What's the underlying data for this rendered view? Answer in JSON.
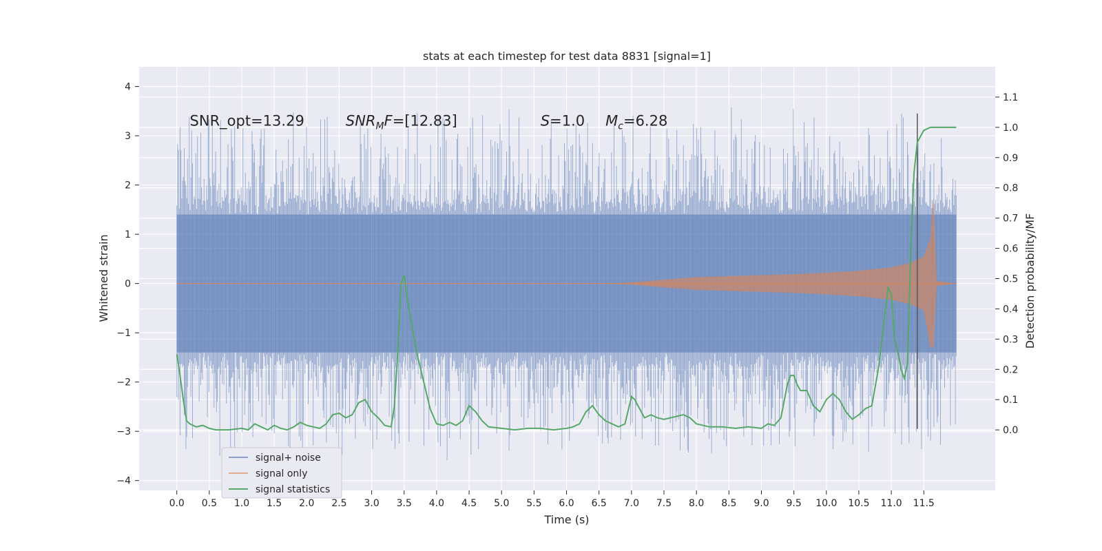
{
  "chart_data": {
    "type": "line",
    "title": "stats at each timestep for test data 8831 [signal=1]",
    "xlabel": "Time (s)",
    "ylabel": "Whitened strain",
    "ylabel_right": "Detection probability/MF",
    "xlim": [
      -0.58,
      12.6
    ],
    "ylim": [
      -4.2,
      4.4
    ],
    "ylim_right": [
      -0.2,
      1.2
    ],
    "xticks": [
      0.0,
      0.5,
      1.0,
      1.5,
      2.0,
      2.5,
      3.0,
      3.5,
      4.0,
      4.5,
      5.0,
      5.5,
      6.0,
      6.5,
      7.0,
      7.5,
      8.0,
      8.5,
      9.0,
      9.5,
      10.0,
      10.5,
      11.0,
      11.5
    ],
    "xtick_labels": [
      "0.0",
      "0.5",
      "1.0",
      "1.5",
      "2.0",
      "2.5",
      "3.0",
      "3.5",
      "4.0",
      "4.5",
      "5.0",
      "5.5",
      "6.0",
      "6.5",
      "7.0",
      "7.5",
      "8.0",
      "8.5",
      "9.0",
      "9.5",
      "10.0",
      "10.5",
      "11.0",
      "11.5"
    ],
    "yticks": [
      -4,
      -3,
      -2,
      -1,
      0,
      1,
      2,
      3,
      4
    ],
    "ytick_labels": [
      "−4",
      "−3",
      "−2",
      "−1",
      "0",
      "1",
      "2",
      "3",
      "4"
    ],
    "yticks_right": [
      0.0,
      0.1,
      0.2,
      0.3,
      0.4,
      0.5,
      0.6,
      0.7,
      0.8,
      0.9,
      1.0,
      1.1
    ],
    "ytick_labels_right": [
      "0.0",
      "0.1",
      "0.2",
      "0.3",
      "0.4",
      "0.5",
      "0.6",
      "0.7",
      "0.8",
      "0.9",
      "1.0",
      "1.1"
    ],
    "grid": true,
    "legend_position": "lower-left",
    "annotations": [
      {
        "text": "SNR_opt=13.29",
        "x": 0.2,
        "y": 3.3
      },
      {
        "text": "SNR_MF=[12.83]",
        "x": 2.6,
        "y": 3.3
      },
      {
        "text": "S=1.0",
        "x": 5.6,
        "y": 3.3
      },
      {
        "text": "M_c=6.28",
        "x": 6.6,
        "y": 3.3
      }
    ],
    "vline": {
      "x": 11.4,
      "ymin": -2.95,
      "ymax": 3.45,
      "color": "#555555"
    },
    "series": [
      {
        "name": "signal+ noise",
        "axis": "left",
        "color": "#4c72b0",
        "style": "noise",
        "x_start": 0.0,
        "x_end": 12.0,
        "core_amplitude": 1.4,
        "peak_amplitude": 3.3
      },
      {
        "name": "signal only",
        "axis": "left",
        "color": "#dd8452",
        "style": "chirp",
        "envelope_x": [
          0.0,
          6.5,
          7.0,
          7.5,
          8.0,
          8.5,
          9.0,
          9.5,
          10.0,
          10.5,
          11.0,
          11.3,
          11.5,
          11.6,
          11.65,
          11.7,
          12.0
        ],
        "envelope_y": [
          0.0,
          0.0,
          0.02,
          0.08,
          0.13,
          0.15,
          0.17,
          0.19,
          0.22,
          0.26,
          0.33,
          0.42,
          0.55,
          0.9,
          1.75,
          0.05,
          0.0
        ]
      },
      {
        "name": "signal statistics",
        "axis": "right",
        "color": "#55a868",
        "style": "line",
        "x": [
          0.0,
          0.05,
          0.1,
          0.15,
          0.2,
          0.3,
          0.4,
          0.5,
          0.6,
          0.8,
          1.0,
          1.1,
          1.2,
          1.3,
          1.4,
          1.5,
          1.6,
          1.7,
          1.8,
          1.9,
          2.0,
          2.1,
          2.2,
          2.3,
          2.4,
          2.5,
          2.6,
          2.7,
          2.8,
          2.9,
          3.0,
          3.1,
          3.2,
          3.3,
          3.35,
          3.4,
          3.45,
          3.5,
          3.55,
          3.6,
          3.7,
          3.8,
          3.9,
          4.0,
          4.1,
          4.2,
          4.3,
          4.4,
          4.5,
          4.6,
          4.7,
          4.8,
          5.0,
          5.2,
          5.4,
          5.6,
          5.8,
          6.0,
          6.1,
          6.2,
          6.3,
          6.4,
          6.5,
          6.6,
          6.7,
          6.8,
          6.9,
          7.0,
          7.05,
          7.1,
          7.2,
          7.3,
          7.4,
          7.5,
          7.6,
          7.7,
          7.8,
          7.9,
          8.0,
          8.2,
          8.4,
          8.6,
          8.8,
          9.0,
          9.1,
          9.2,
          9.3,
          9.4,
          9.45,
          9.5,
          9.55,
          9.6,
          9.7,
          9.8,
          9.9,
          10.0,
          10.1,
          10.2,
          10.3,
          10.4,
          10.5,
          10.6,
          10.7,
          10.8,
          10.9,
          10.95,
          11.0,
          11.05,
          11.1,
          11.15,
          11.2,
          11.25,
          11.3,
          11.35,
          11.4,
          11.45,
          11.5,
          11.6,
          11.7,
          11.8,
          11.9,
          12.0
        ],
        "y": [
          0.25,
          0.18,
          0.1,
          0.03,
          0.02,
          0.01,
          0.015,
          0.005,
          0.0,
          0.0,
          0.005,
          0.0,
          0.02,
          0.01,
          0.0,
          0.015,
          0.005,
          0.0,
          0.01,
          0.025,
          0.015,
          0.01,
          0.005,
          0.02,
          0.05,
          0.055,
          0.04,
          0.05,
          0.09,
          0.1,
          0.06,
          0.04,
          0.015,
          0.01,
          0.08,
          0.25,
          0.48,
          0.51,
          0.43,
          0.37,
          0.25,
          0.16,
          0.07,
          0.02,
          0.015,
          0.025,
          0.015,
          0.03,
          0.08,
          0.06,
          0.03,
          0.01,
          0.005,
          0.0,
          0.005,
          0.005,
          0.0,
          0.005,
          0.01,
          0.02,
          0.06,
          0.08,
          0.05,
          0.03,
          0.02,
          0.01,
          0.02,
          0.11,
          0.1,
          0.08,
          0.04,
          0.05,
          0.04,
          0.035,
          0.04,
          0.045,
          0.05,
          0.04,
          0.02,
          0.01,
          0.01,
          0.005,
          0.01,
          0.005,
          0.02,
          0.015,
          0.04,
          0.15,
          0.18,
          0.18,
          0.15,
          0.13,
          0.13,
          0.08,
          0.06,
          0.1,
          0.12,
          0.1,
          0.06,
          0.035,
          0.05,
          0.07,
          0.08,
          0.2,
          0.38,
          0.47,
          0.45,
          0.3,
          0.26,
          0.2,
          0.17,
          0.22,
          0.6,
          0.85,
          0.95,
          0.97,
          0.99,
          1.0,
          1.0,
          1.0,
          1.0,
          1.0
        ]
      }
    ]
  }
}
